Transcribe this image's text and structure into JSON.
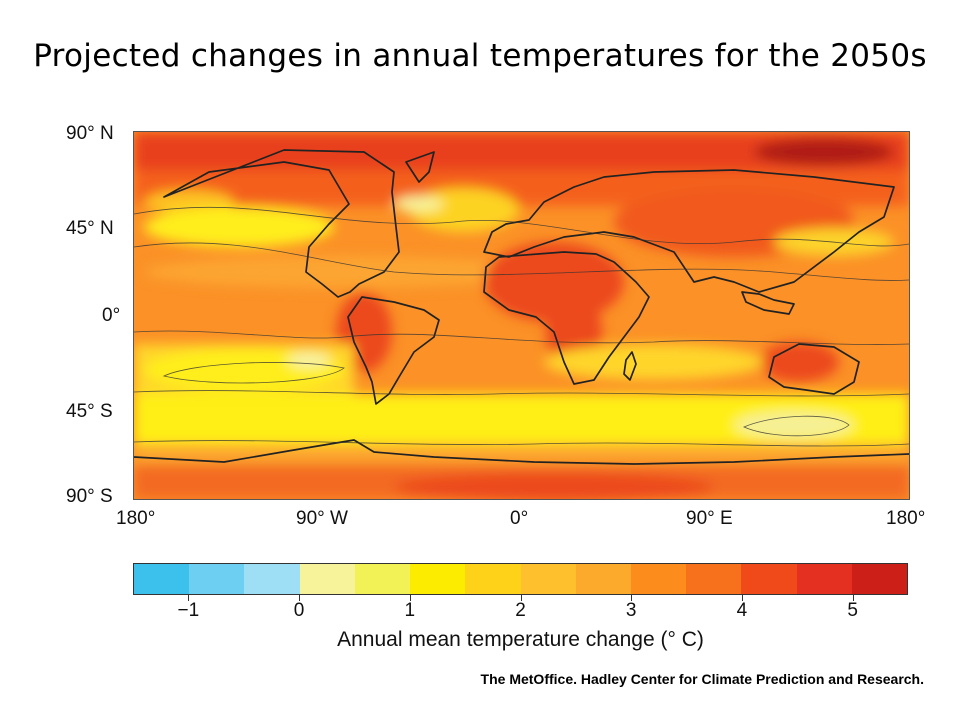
{
  "title": "Projected changes in annual temperatures for the 2050s",
  "map": {
    "y_ticks": [
      "90° N",
      "45° N",
      "0°",
      "45° S",
      "90° S"
    ],
    "x_ticks": [
      "180°",
      "90° W",
      "0°",
      "90° E",
      "180°"
    ]
  },
  "colorbar": {
    "title": "Annual mean temperature change (° C)",
    "tick_labels": [
      "−1",
      "0",
      "1",
      "2",
      "3",
      "4",
      "5"
    ],
    "tick_values": [
      -1,
      0,
      1,
      2,
      3,
      4,
      5
    ],
    "range": [
      -1.5,
      5.5
    ],
    "colors": [
      "#3cc0ec",
      "#6dd0f2",
      "#9fdff6",
      "#f6f39a",
      "#f2f257",
      "#fcec00",
      "#ffd21a",
      "#fec02c",
      "#fcaa2c",
      "#fc8d1c",
      "#f7701c",
      "#f04a1a",
      "#e43020",
      "#cc1f18"
    ]
  },
  "credit": "The MetOffice.    Hadley Center for Climate Prediction and Research."
}
